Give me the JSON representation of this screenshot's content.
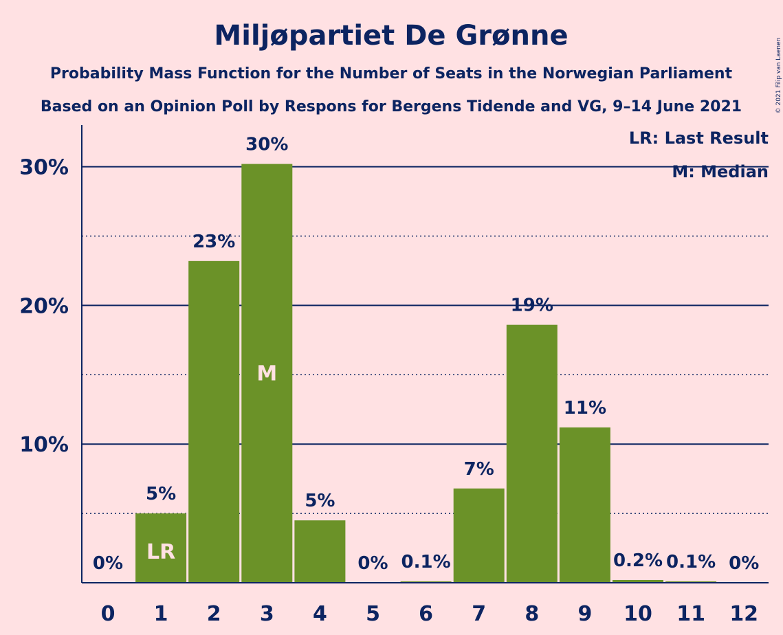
{
  "chart_data": {
    "type": "bar",
    "title": "Miljøpartiet De Grønne",
    "subtitle_1": "Probability Mass Function for the Number of Seats in the Norwegian Parliament",
    "subtitle_2": "Based on an Opinion Poll by Respons for Bergens Tidende and VG, 9–14 June 2021",
    "categories": [
      "0",
      "1",
      "2",
      "3",
      "4",
      "5",
      "6",
      "7",
      "8",
      "9",
      "10",
      "11",
      "12"
    ],
    "values": [
      0,
      5.0,
      23.2,
      30.2,
      4.5,
      0,
      0.1,
      6.8,
      18.6,
      11.2,
      0.2,
      0.1,
      0
    ],
    "value_labels": [
      "0%",
      "5%",
      "23%",
      "30%",
      "5%",
      "0%",
      "0.1%",
      "7%",
      "19%",
      "11%",
      "0.2%",
      "0.1%",
      "0%"
    ],
    "ylim": [
      0,
      33
    ],
    "yticks": [
      10,
      20,
      30
    ],
    "ytick_labels": [
      "10%",
      "20%",
      "30%"
    ],
    "minor_gridlines": [
      5,
      15,
      25
    ],
    "bar_color": "#6b9228",
    "axis_color": "#0c2461",
    "background": "#ffe1e3",
    "markers": [
      {
        "category": "1",
        "label": "LR"
      },
      {
        "category": "3",
        "label": "M"
      }
    ],
    "legend": [
      "LR: Last Result",
      "M: Median"
    ],
    "legend_position": "top-right",
    "copyright": "© 2021 Filip van Laenen"
  }
}
